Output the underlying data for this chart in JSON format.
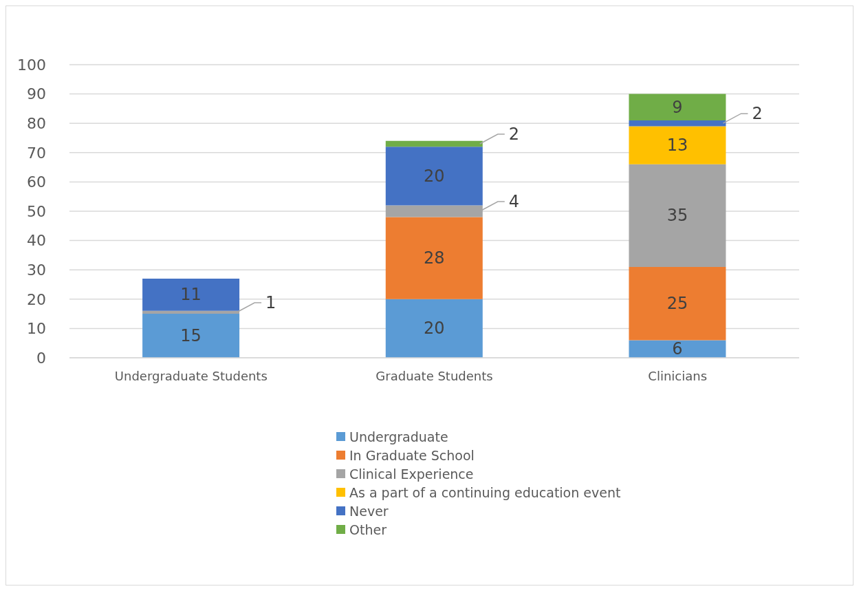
{
  "chart_data": {
    "type": "bar",
    "stacked": true,
    "categories": [
      "Undergraduate Students",
      "Graduate Students",
      "Clinicians"
    ],
    "series": [
      {
        "name": "Undergraduate",
        "color": "#5b9bd5",
        "values": [
          15,
          20,
          6
        ]
      },
      {
        "name": "In Graduate School",
        "color": "#ed7d31",
        "values": [
          null,
          28,
          25
        ]
      },
      {
        "name": "Clinical Experience",
        "color": "#a5a5a5",
        "values": [
          1,
          4,
          35
        ]
      },
      {
        "name": "As a part of a continuing education event",
        "color": "#ffc000",
        "values": [
          null,
          null,
          13
        ]
      },
      {
        "name": "Never",
        "color": "#4472c4",
        "values": [
          11,
          20,
          2
        ]
      },
      {
        "name": "Other",
        "color": "#70ad47",
        "values": [
          null,
          2,
          9
        ]
      }
    ],
    "ylim": [
      0,
      100
    ],
    "yticks": [
      0,
      10,
      20,
      30,
      40,
      50,
      60,
      70,
      80,
      90,
      100
    ],
    "grid": "y",
    "legend": "bottom",
    "data_labels": true
  }
}
